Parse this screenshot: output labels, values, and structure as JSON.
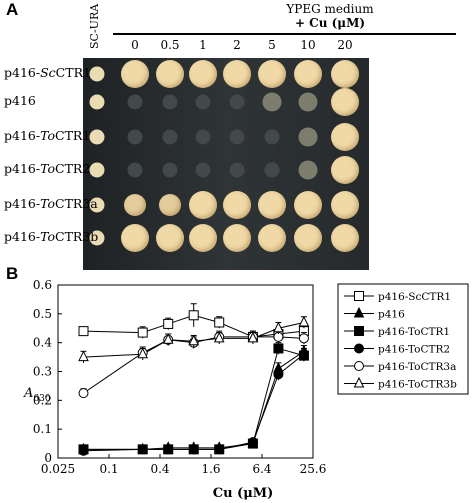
{
  "panels": {
    "a_letter": "A",
    "b_letter": "B"
  },
  "panel_a": {
    "medium_label": "YPEG medium",
    "cu_label": "+ Cu (μM)",
    "control_label": "SC-URA",
    "concentrations": [
      "0",
      "0.5",
      "1",
      "2",
      "5",
      "10",
      "20"
    ],
    "strains": [
      {
        "label_prefix": "p416-",
        "label_italic": "Sc",
        "label_suffix": "CTR1",
        "growth": [
          "strong",
          "strong",
          "strong",
          "strong",
          "strong",
          "strong",
          "strong"
        ]
      },
      {
        "label_prefix": "p416",
        "label_italic": "",
        "label_suffix": "",
        "growth": [
          "none",
          "none",
          "none",
          "none",
          "weak",
          "weak",
          "strong"
        ]
      },
      {
        "label_prefix": "p416-",
        "label_italic": "To",
        "label_suffix": "CTR1",
        "growth": [
          "none",
          "none",
          "none",
          "none",
          "none",
          "weak",
          "strong"
        ]
      },
      {
        "label_prefix": "p416-",
        "label_italic": "To",
        "label_suffix": "CTR2",
        "growth": [
          "none",
          "none",
          "none",
          "none",
          "none",
          "weak",
          "strong"
        ]
      },
      {
        "label_prefix": "p416-",
        "label_italic": "To",
        "label_suffix": "CTR3a",
        "growth": [
          "medium",
          "medium",
          "strong",
          "strong",
          "strong",
          "strong",
          "strong"
        ]
      },
      {
        "label_prefix": "p416-",
        "label_italic": "To",
        "label_suffix": "CTR3b",
        "growth": [
          "strong",
          "strong",
          "strong",
          "strong",
          "strong",
          "strong",
          "strong"
        ]
      }
    ],
    "colors": {
      "plate": "#24282a",
      "colony_strong": "#efd9a6",
      "colony_medium": "#e3cd9c",
      "colony_weak": "#7c7d6c",
      "colony_none": "#43484a",
      "control": "#eadbb4"
    }
  },
  "chart_data": {
    "type": "line",
    "xlabel": "Cu (μM)",
    "ylabel": "A",
    "ylabel_sub": "630",
    "x_scale": "log2",
    "xlim": [
      0.025,
      25.6
    ],
    "ylim": [
      0,
      0.6
    ],
    "x_ticks": [
      "0.025",
      "0.1",
      "0.4",
      "1.6",
      "6.4",
      "25.6"
    ],
    "y_ticks": [
      "0",
      "0.1",
      "0.2",
      "0.3",
      "0.4",
      "0.5",
      "0.6"
    ],
    "x": [
      0.05,
      0.25,
      0.5,
      1,
      2,
      5,
      10,
      20
    ],
    "series": [
      {
        "name": "p416-ScCTR1",
        "marker": "square-open",
        "values": [
          0.44,
          0.435,
          0.465,
          0.495,
          0.47,
          0.42,
          0.43,
          0.44
        ],
        "errors": [
          0.01,
          0.02,
          0.02,
          0.04,
          0.02,
          0.02,
          0.02,
          0.02
        ]
      },
      {
        "name": "p416",
        "marker": "triangle-filled",
        "values": [
          0.03,
          0.03,
          0.035,
          0.035,
          0.035,
          0.05,
          0.31,
          0.37
        ],
        "errors": [
          0.005,
          0.005,
          0.005,
          0.005,
          0.005,
          0.01,
          0.02,
          0.02
        ]
      },
      {
        "name": "p416-ToCTR1",
        "marker": "square-filled",
        "values": [
          0.03,
          0.03,
          0.03,
          0.03,
          0.03,
          0.05,
          0.38,
          0.355
        ],
        "errors": [
          0.005,
          0.005,
          0.005,
          0.005,
          0.005,
          0.01,
          0.02,
          0.02
        ]
      },
      {
        "name": "p416-ToCTR2",
        "marker": "circle-filled",
        "values": [
          0.025,
          0.03,
          0.03,
          0.03,
          0.03,
          0.055,
          0.29,
          0.36
        ],
        "errors": [
          0.005,
          0.005,
          0.005,
          0.005,
          0.005,
          0.01,
          0.02,
          0.02
        ]
      },
      {
        "name": "p416-ToCTR3a",
        "marker": "circle-open",
        "values": [
          0.225,
          0.365,
          0.41,
          0.4,
          0.42,
          0.42,
          0.42,
          0.415
        ],
        "errors": [
          0.015,
          0.02,
          0.02,
          0.02,
          0.02,
          0.02,
          0.02,
          0.02
        ]
      },
      {
        "name": "p416-ToCTR3b",
        "marker": "triangle-open",
        "values": [
          0.35,
          0.36,
          0.41,
          0.405,
          0.415,
          0.415,
          0.45,
          0.47
        ],
        "errors": [
          0.02,
          0.02,
          0.02,
          0.02,
          0.02,
          0.02,
          0.02,
          0.02
        ]
      }
    ]
  }
}
